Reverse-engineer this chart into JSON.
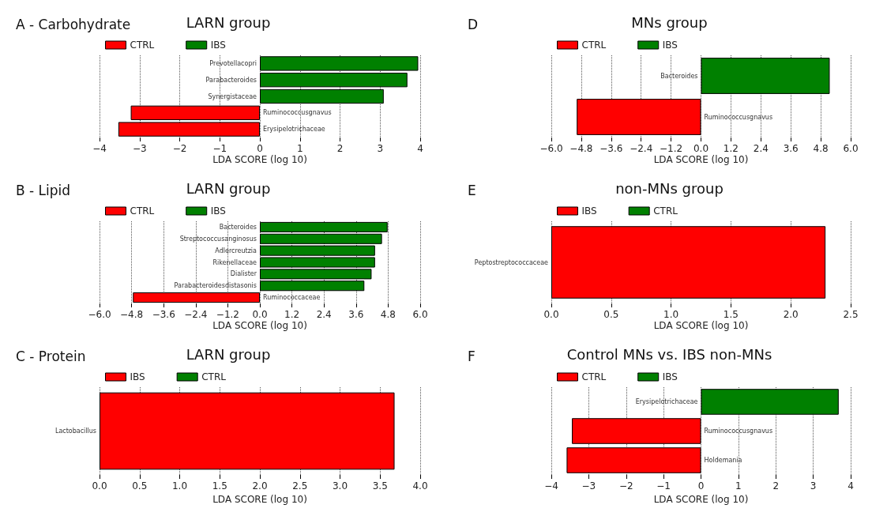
{
  "chart_data": [
    {
      "type": "bar",
      "orientation": "horizontal",
      "title": "LARN group",
      "annotations": [
        "A - Carbohydrate"
      ],
      "xlabel": "LDA SCORE (log 10)",
      "categories": [
        "Prevotellacopri",
        "Parabacteroides",
        "Synergistaceae",
        "Ruminococcusgnavus",
        "Erysipelotrichaceae"
      ],
      "series": [
        {
          "name": "CTRL",
          "color": "#ff0000",
          "values": [
            null,
            null,
            null,
            -3.22,
            -3.53
          ]
        },
        {
          "name": "IBS",
          "color": "#008000",
          "values": [
            3.95,
            3.68,
            3.09,
            null,
            null
          ]
        }
      ],
      "xlim": [
        -4,
        4
      ],
      "xticks": [
        {
          "value": -4,
          "label": "−4"
        },
        {
          "value": -3,
          "label": "−3"
        },
        {
          "value": -2,
          "label": "−2"
        },
        {
          "value": -1,
          "label": "−1"
        },
        0,
        1,
        2,
        3,
        4
      ],
      "grid": "x",
      "legend": "top left"
    },
    {
      "type": "bar",
      "orientation": "horizontal",
      "title": "LARN group",
      "annotations": [
        "B - Lipid"
      ],
      "xlabel": "LDA SCORE (log 10)",
      "categories": [
        "Bacteroides",
        "Streptococcusanginosus",
        "Adlercreutzia",
        "Rikenellaceae",
        "Dialister",
        "Parabacteroidesdistasonis",
        "Ruminococcaceae"
      ],
      "series": [
        {
          "name": "CTRL",
          "color": "#ff0000",
          "values": [
            null,
            null,
            null,
            null,
            null,
            null,
            -4.75
          ]
        },
        {
          "name": "IBS",
          "color": "#008000",
          "values": [
            4.78,
            4.57,
            4.31,
            4.31,
            4.18,
            3.91,
            null
          ]
        }
      ],
      "xlim": [
        -6,
        6
      ],
      "xticks": [
        {
          "value": -6,
          "label": "−6.0"
        },
        {
          "value": -4.8,
          "label": "−4.8"
        },
        {
          "value": -3.6,
          "label": "−3.6"
        },
        {
          "value": -2.4,
          "label": "−2.4"
        },
        {
          "value": -1.2,
          "label": "−1.2"
        },
        {
          "value": 0,
          "label": "0.0"
        },
        1.2,
        2.4,
        3.6,
        4.8,
        {
          "value": 6,
          "label": "6.0"
        }
      ],
      "grid": "x",
      "legend": "top left"
    },
    {
      "type": "bar",
      "orientation": "horizontal",
      "title": "LARN group",
      "annotations": [
        "C - Protein"
      ],
      "xlabel": "LDA SCORE (log 10)",
      "categories": [
        "Lactobacillus"
      ],
      "series": [
        {
          "name": "IBS",
          "color": "#ff0000",
          "values": [
            3.68
          ]
        },
        {
          "name": "CTRL",
          "color": "#008000",
          "values": [
            null
          ]
        }
      ],
      "xlim": [
        0,
        4
      ],
      "xticks": [
        {
          "value": 0,
          "label": "0.0"
        },
        0.5,
        {
          "value": 1,
          "label": "1.0"
        },
        1.5,
        {
          "value": 2,
          "label": "2.0"
        },
        2.5,
        {
          "value": 3,
          "label": "3.0"
        },
        3.5,
        {
          "value": 4,
          "label": "4.0"
        }
      ],
      "grid": "x",
      "legend": "top left"
    },
    {
      "type": "bar",
      "orientation": "horizontal",
      "title": "MNs group",
      "annotations": [
        "D"
      ],
      "xlabel": "LDA SCORE (log 10)",
      "categories": [
        "Bacteroides",
        "Ruminococcusgnavus"
      ],
      "series": [
        {
          "name": "CTRL",
          "color": "#ff0000",
          "values": [
            null,
            -4.98
          ]
        },
        {
          "name": "IBS",
          "color": "#008000",
          "values": [
            5.16,
            null
          ]
        }
      ],
      "xlim": [
        -6,
        6
      ],
      "xticks": [
        {
          "value": -6,
          "label": "−6.0"
        },
        {
          "value": -4.8,
          "label": "−4.8"
        },
        {
          "value": -3.6,
          "label": "−3.6"
        },
        {
          "value": -2.4,
          "label": "−2.4"
        },
        {
          "value": -1.2,
          "label": "−1.2"
        },
        {
          "value": 0,
          "label": "0.0"
        },
        1.2,
        2.4,
        3.6,
        4.8,
        {
          "value": 6,
          "label": "6.0"
        }
      ],
      "grid": "x",
      "legend": "top left"
    },
    {
      "type": "bar",
      "orientation": "horizontal",
      "title": "non-MNs group",
      "annotations": [
        "E"
      ],
      "xlabel": "LDA SCORE (log 10)",
      "categories": [
        "Peptostreptococcaceae"
      ],
      "series": [
        {
          "name": "IBS",
          "color": "#ff0000",
          "values": [
            2.29
          ]
        },
        {
          "name": "CTRL",
          "color": "#008000",
          "values": [
            null
          ]
        }
      ],
      "xlim": [
        0,
        2.5
      ],
      "xticks": [
        {
          "value": 0,
          "label": "0.0"
        },
        0.5,
        {
          "value": 1,
          "label": "1.0"
        },
        1.5,
        {
          "value": 2,
          "label": "2.0"
        },
        2.5
      ],
      "grid": "x",
      "legend": "top left"
    },
    {
      "type": "bar",
      "orientation": "horizontal",
      "title": "Control MNs vs. IBS non-MNs",
      "annotations": [
        "F"
      ],
      "xlabel": "LDA SCORE (log 10)",
      "categories": [
        "Erysipelotrichaceae",
        "Ruminococcusgnavus",
        "Holdemania"
      ],
      "series": [
        {
          "name": "CTRL",
          "color": "#ff0000",
          "values": [
            null,
            -3.45,
            -3.59
          ]
        },
        {
          "name": "IBS",
          "color": "#008000",
          "values": [
            3.68,
            null,
            null
          ]
        }
      ],
      "xlim": [
        -4,
        4
      ],
      "xticks": [
        {
          "value": -4,
          "label": "−4"
        },
        {
          "value": -3,
          "label": "−3"
        },
        {
          "value": -2,
          "label": "−2"
        },
        {
          "value": -1,
          "label": "−1"
        },
        0,
        1,
        2,
        3,
        4
      ],
      "grid": "x",
      "legend": "top left"
    }
  ]
}
